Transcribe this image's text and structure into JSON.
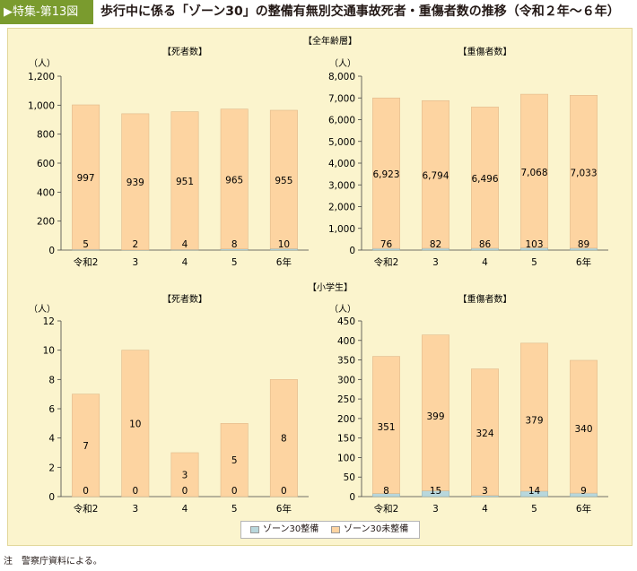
{
  "header": {
    "badge": "▶特集-第13図",
    "title": "歩行中に係る「ゾーン30」の整備有無別交通事故死者・重傷者数の推移（令和２年～６年）"
  },
  "legend": {
    "items": [
      {
        "label": "ゾーン30整備",
        "color": "#b8d7dc"
      },
      {
        "label": "ゾーン30未整備",
        "color": "#fdd4a1"
      }
    ]
  },
  "note": "注　警察庁資料による。",
  "chart_data": {
    "groups": [
      {
        "title": "【全年齢層】"
      },
      {
        "title": "【小学生】"
      }
    ],
    "charts": [
      {
        "type": "bar",
        "stacked": true,
        "title": "【死者数】",
        "unit": "（人）",
        "categories": [
          "令和2",
          "3",
          "4",
          "5",
          "6年"
        ],
        "series": [
          {
            "name": "ゾーン30整備",
            "values": [
              5,
              2,
              4,
              8,
              10
            ]
          },
          {
            "name": "ゾーン30未整備",
            "values": [
              997,
              939,
              951,
              965,
              955
            ]
          }
        ],
        "ylim": [
          0,
          1200
        ],
        "yticks": [
          "0",
          "200",
          "400",
          "600",
          "800",
          "1,000",
          "1,200"
        ],
        "labels_bottom": [
          "5",
          "2",
          "4",
          "8",
          "10"
        ],
        "labels_top": [
          "997",
          "939",
          "951",
          "965",
          "955"
        ]
      },
      {
        "type": "bar",
        "stacked": true,
        "title": "【重傷者数】",
        "unit": "（人）",
        "categories": [
          "令和2",
          "3",
          "4",
          "5",
          "6年"
        ],
        "series": [
          {
            "name": "ゾーン30整備",
            "values": [
              76,
              82,
              86,
              103,
              89
            ]
          },
          {
            "name": "ゾーン30未整備",
            "values": [
              6923,
              6794,
              6496,
              7068,
              7033
            ]
          }
        ],
        "ylim": [
          0,
          8000
        ],
        "yticks": [
          "0",
          "1,000",
          "2,000",
          "3,000",
          "4,000",
          "5,000",
          "6,000",
          "7,000",
          "8,000"
        ],
        "labels_bottom": [
          "76",
          "82",
          "86",
          "103",
          "89"
        ],
        "labels_top": [
          "6,923",
          "6,794",
          "6,496",
          "7,068",
          "7,033"
        ]
      },
      {
        "type": "bar",
        "stacked": true,
        "title": "【死者数】",
        "unit": "（人）",
        "categories": [
          "令和2",
          "3",
          "4",
          "5",
          "6年"
        ],
        "series": [
          {
            "name": "ゾーン30整備",
            "values": [
              0,
              0,
              0,
              0,
              0
            ]
          },
          {
            "name": "ゾーン30未整備",
            "values": [
              7,
              10,
              3,
              5,
              8
            ]
          }
        ],
        "ylim": [
          0,
          12
        ],
        "yticks": [
          "0",
          "2",
          "4",
          "6",
          "8",
          "10",
          "12"
        ],
        "labels_bottom": [
          "0",
          "0",
          "0",
          "0",
          "0"
        ],
        "labels_top": [
          "7",
          "10",
          "3",
          "5",
          "8"
        ]
      },
      {
        "type": "bar",
        "stacked": true,
        "title": "【重傷者数】",
        "unit": "（人）",
        "categories": [
          "令和2",
          "3",
          "4",
          "5",
          "6年"
        ],
        "series": [
          {
            "name": "ゾーン30整備",
            "values": [
              8,
              15,
              3,
              14,
              9
            ]
          },
          {
            "name": "ゾーン30未整備",
            "values": [
              351,
              399,
              324,
              379,
              340
            ]
          }
        ],
        "ylim": [
          0,
          450
        ],
        "yticks": [
          "0",
          "50",
          "100",
          "150",
          "200",
          "250",
          "300",
          "350",
          "400",
          "450"
        ],
        "labels_bottom": [
          "8",
          "15",
          "3",
          "14",
          "9"
        ],
        "labels_top": [
          "351",
          "399",
          "324",
          "379",
          "340"
        ]
      }
    ]
  }
}
